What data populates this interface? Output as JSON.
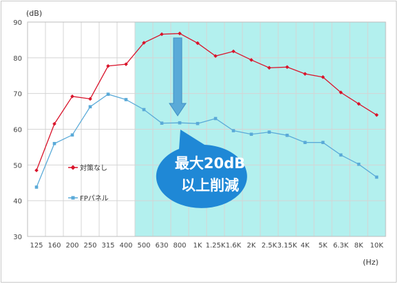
{
  "chart_data": {
    "type": "line",
    "title": "",
    "ylabel": "(dB)",
    "xlabel": "(Hz)",
    "ylim": [
      30,
      90
    ],
    "yticks": [
      30,
      40,
      50,
      60,
      70,
      80,
      90
    ],
    "categories": [
      "125",
      "160",
      "200",
      "250",
      "315",
      "400",
      "500",
      "630",
      "800",
      "1K",
      "1.25K",
      "1.6K",
      "2K",
      "2.5K",
      "3.15K",
      "4K",
      "5K",
      "6.3K",
      "8K",
      "10K"
    ],
    "series": [
      {
        "name": "対策なし",
        "color": "#d9142b",
        "marker": "diamond",
        "values": [
          48.5,
          61.5,
          69.2,
          68.5,
          77.7,
          78.2,
          84.2,
          86.6,
          86.8,
          84.1,
          80.5,
          81.8,
          79.4,
          77.2,
          77.4,
          75.5,
          74.6,
          70.3,
          67.1,
          64.0
        ]
      },
      {
        "name": "FPパネル",
        "color": "#5aaad8",
        "marker": "square",
        "values": [
          43.8,
          56.0,
          58.4,
          66.3,
          69.8,
          68.3,
          65.5,
          61.7,
          61.8,
          61.6,
          63.0,
          59.6,
          58.6,
          59.2,
          58.3,
          56.3,
          56.3,
          52.8,
          50.2,
          46.6
        ]
      }
    ],
    "highlight": {
      "from_category": "500",
      "to_category": "10K",
      "color": "#b3f0ee"
    },
    "grid": "vertical and horizontal",
    "legend": "left-center inside plot",
    "callout": {
      "lines": [
        "最大20dB",
        "以上削減"
      ],
      "fill": "#1f88d6"
    },
    "arrow": {
      "at_category": "800",
      "color": "#5aaad8"
    }
  }
}
